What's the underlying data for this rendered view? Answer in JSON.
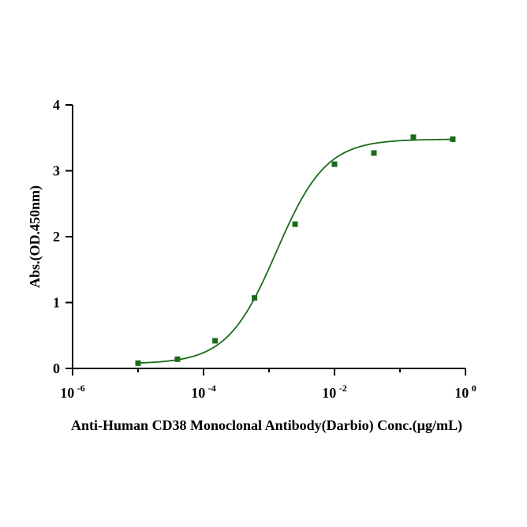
{
  "chart_data": {
    "type": "scatter",
    "title": "",
    "xlabel": "Anti-Human CD38 Monoclonal Antibody(Darbio) Conc.(µg/mL)",
    "ylabel": "Abs.(OD.450nm)",
    "xscale": "log",
    "xlim": [
      1e-06,
      1
    ],
    "ylim": [
      0,
      4
    ],
    "x_ticks": [
      {
        "value": 1e-06,
        "base": "10",
        "exp": "-6"
      },
      {
        "value": 0.0001,
        "base": "10",
        "exp": "-4"
      },
      {
        "value": 0.01,
        "base": "10",
        "exp": "-2"
      },
      {
        "value": 1,
        "base": "10",
        "exp": "0"
      }
    ],
    "y_ticks": [
      "0",
      "1",
      "2",
      "3",
      "4"
    ],
    "grid": false,
    "legend": "none",
    "color": "#1a6b1a",
    "series": [
      {
        "points": [
          {
            "x": 1e-05,
            "y": 0.08
          },
          {
            "x": 4e-05,
            "y": 0.14
          },
          {
            "x": 0.00015,
            "y": 0.42
          },
          {
            "x": 0.0006,
            "y": 1.07
          },
          {
            "x": 0.0025,
            "y": 2.19
          },
          {
            "x": 0.01,
            "y": 3.1
          },
          {
            "x": 0.04,
            "y": 3.27
          },
          {
            "x": 0.16,
            "y": 3.51
          },
          {
            "x": 0.64,
            "y": 3.48
          }
        ],
        "fit": {
          "model": "4PL",
          "bottom": 0.07,
          "top": 3.48,
          "ec50": 0.0013,
          "hill": 1.15
        }
      }
    ]
  }
}
